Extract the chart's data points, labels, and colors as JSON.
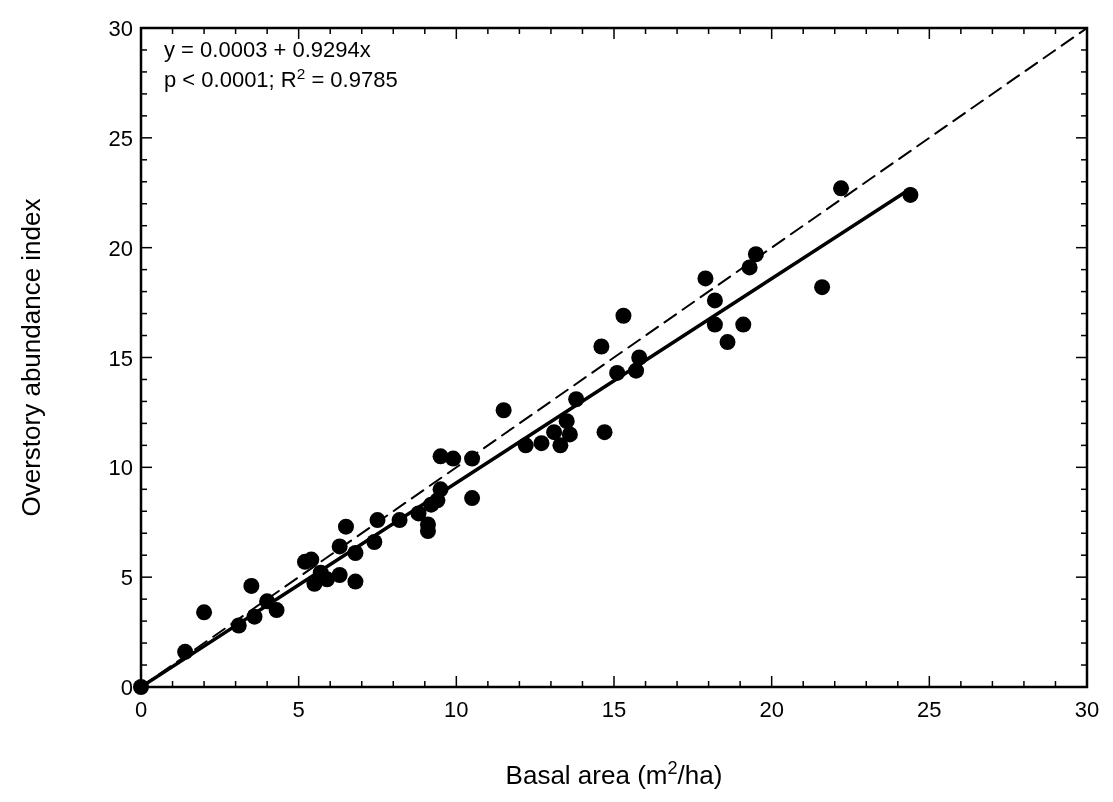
{
  "chart_data": {
    "type": "scatter",
    "xlabel": "Basal area  (m$^{2}$/ha)",
    "ylabel": "Overstory abundance index",
    "annotations": [
      "y = 0.0003 + 0.9294x",
      "p < 0.0001; R$^{2}$ = 0.9785"
    ],
    "xlim": [
      0,
      30
    ],
    "ylim": [
      0,
      30
    ],
    "xticks": [
      0,
      {
        "value": 1,
        "label": null
      },
      {
        "value": 2,
        "label": null
      },
      {
        "value": 3,
        "label": null
      },
      {
        "value": 4,
        "label": null
      },
      5,
      {
        "value": 6,
        "label": null
      },
      {
        "value": 7,
        "label": null
      },
      {
        "value": 8,
        "label": null
      },
      {
        "value": 9,
        "label": null
      },
      10,
      {
        "value": 11,
        "label": null
      },
      {
        "value": 12,
        "label": null
      },
      {
        "value": 13,
        "label": null
      },
      {
        "value": 14,
        "label": null
      },
      15,
      {
        "value": 16,
        "label": null
      },
      {
        "value": 17,
        "label": null
      },
      {
        "value": 18,
        "label": null
      },
      {
        "value": 19,
        "label": null
      },
      20,
      {
        "value": 21,
        "label": null
      },
      {
        "value": 22,
        "label": null
      },
      {
        "value": 23,
        "label": null
      },
      {
        "value": 24,
        "label": null
      },
      25,
      {
        "value": 26,
        "label": null
      },
      {
        "value": 27,
        "label": null
      },
      {
        "value": 28,
        "label": null
      },
      {
        "value": 29,
        "label": null
      },
      30
    ],
    "yticks": [
      0,
      {
        "value": 1,
        "label": null
      },
      {
        "value": 2,
        "label": null
      },
      {
        "value": 3,
        "label": null
      },
      {
        "value": 4,
        "label": null
      },
      5,
      {
        "value": 6,
        "label": null
      },
      {
        "value": 7,
        "label": null
      },
      {
        "value": 8,
        "label": null
      },
      {
        "value": 9,
        "label": null
      },
      10,
      {
        "value": 11,
        "label": null
      },
      {
        "value": 12,
        "label": null
      },
      {
        "value": 13,
        "label": null
      },
      {
        "value": 14,
        "label": null
      },
      15,
      {
        "value": 16,
        "label": null
      },
      {
        "value": 17,
        "label": null
      },
      {
        "value": 18,
        "label": null
      },
      {
        "value": 19,
        "label": null
      },
      20,
      {
        "value": 21,
        "label": null
      },
      {
        "value": 22,
        "label": null
      },
      {
        "value": 23,
        "label": null
      },
      {
        "value": 24,
        "label": null
      },
      25,
      {
        "value": 26,
        "label": null
      },
      {
        "value": 27,
        "label": null
      },
      {
        "value": 28,
        "label": null
      },
      {
        "value": 29,
        "label": null
      },
      30
    ],
    "grid": false,
    "series": [
      {
        "color": "#000000",
        "marker": "circle",
        "x": [
          0,
          1.4,
          2.0,
          3.1,
          3.5,
          3.6,
          4.0,
          4.3,
          5.2,
          5.4,
          5.5,
          5.7,
          5.9,
          6.3,
          6.3,
          6.5,
          6.8,
          6.8,
          7.4,
          7.5,
          8.2,
          8.8,
          9.1,
          9.1,
          9.2,
          9.4,
          9.5,
          9.5,
          9.9,
          10.5,
          10.5,
          11.5,
          12.2,
          12.7,
          13.1,
          13.3,
          13.5,
          13.6,
          13.8,
          14.6,
          14.7,
          15.1,
          15.3,
          15.7,
          15.8,
          17.9,
          18.2,
          18.2,
          18.6,
          19.1,
          19.3,
          19.5,
          21.6,
          22.2,
          24.4
        ],
        "values": [
          0,
          1.6,
          3.4,
          2.8,
          4.6,
          3.2,
          3.9,
          3.5,
          5.7,
          5.8,
          4.7,
          5.2,
          4.9,
          6.4,
          5.1,
          7.3,
          6.1,
          4.8,
          6.6,
          7.6,
          7.6,
          7.9,
          7.4,
          7.1,
          8.3,
          8.5,
          9.0,
          10.5,
          10.4,
          10.4,
          8.6,
          12.6,
          11.0,
          11.1,
          11.6,
          11.0,
          12.1,
          11.5,
          13.1,
          15.5,
          11.6,
          14.3,
          16.9,
          14.4,
          15.0,
          18.6,
          17.6,
          16.5,
          15.7,
          16.5,
          19.1,
          19.7,
          18.2,
          22.7,
          22.4
        ]
      },
      {
        "type": "line",
        "color": "#000000",
        "line_style": "solid",
        "x": [
          0,
          24.4
        ],
        "values": [
          0,
          22.68
        ]
      },
      {
        "type": "line",
        "color": "#000000",
        "line_style": "dashed",
        "x": [
          0,
          30
        ],
        "values": [
          0,
          30
        ]
      }
    ]
  }
}
